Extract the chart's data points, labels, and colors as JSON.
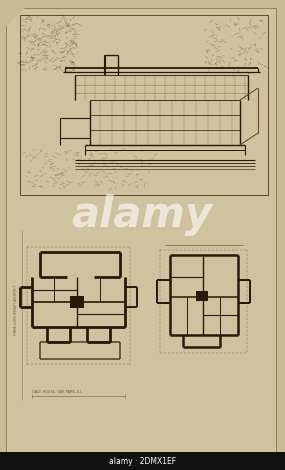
{
  "bg_color": "#c8bc96",
  "paper_color": "#cec39e",
  "border_color": "#6a5a38",
  "line_color": "#5a4020",
  "dark_line": "#2a1808",
  "figsize": [
    2.85,
    4.7
  ],
  "dpi": 100,
  "watermark": "alamy",
  "watermark_color": "#ffffff",
  "watermark_alpha": 0.6,
  "bottom_bar_color": "#111111",
  "bottom_bar_text": "alamy · 2DMX1EF",
  "bottom_bar_text_color": "#ffffff"
}
